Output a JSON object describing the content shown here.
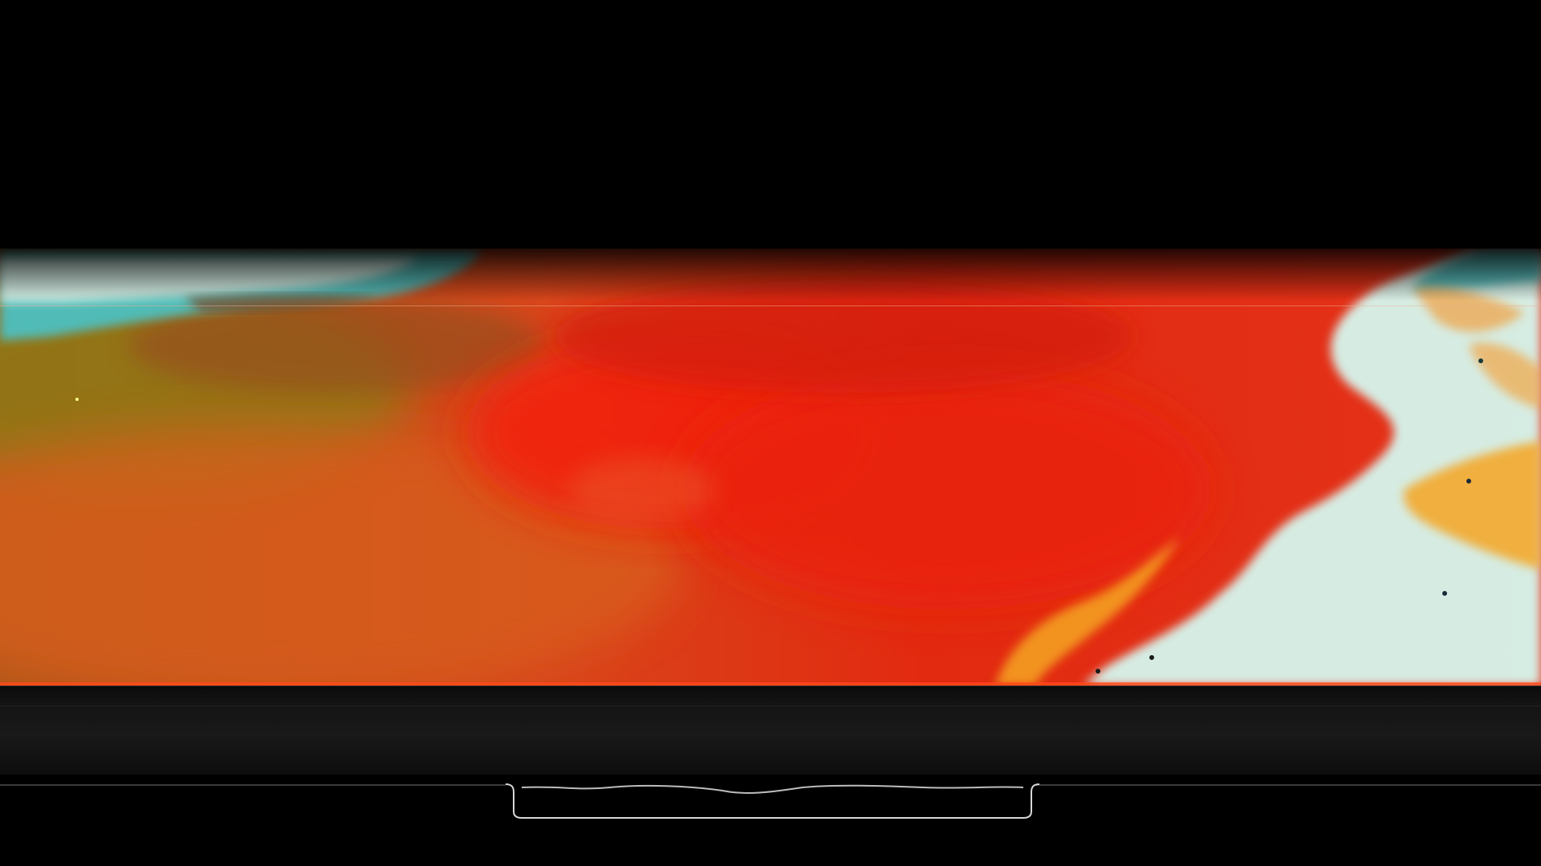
{
  "scene": {
    "subject": "tv-screen-abstract-thermal-image",
    "colors": {
      "background": "#000000",
      "red": "#e51b0a",
      "orange": "#e0541a",
      "olive": "#8a6a14",
      "cyan": "#4fc2c2",
      "pale_cyan": "#d8f4ec",
      "amber": "#f5a623",
      "bezel": "#141414",
      "stand": "#d8d8d8"
    }
  }
}
